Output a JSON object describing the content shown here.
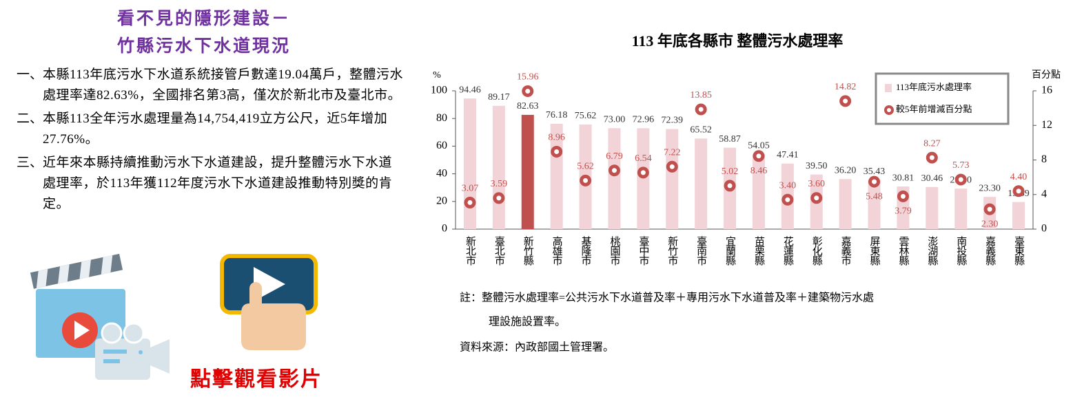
{
  "header": {
    "title_lines": [
      "看不見的隱形建設－",
      "竹縣污水下水道現況"
    ]
  },
  "items": [
    {
      "marker": "一、",
      "text": "本縣113年底污水下水道系統接管戶數達19.04萬戶，整體污水處理率達82.63%，全國排名第3高，僅次於新北市及臺北市。"
    },
    {
      "marker": "二、",
      "text": "本縣113全年污水處理量為14,754,419立方公尺，近5年增加27.76%。"
    },
    {
      "marker": "三、",
      "text": "近年來本縣持續推動污水下水道建設，提升整體污水下水道處理率，於113年獲112年度污水下水道建設推動特別獎的肯定。"
    }
  ],
  "video_link": "點擊觀看影片",
  "chart_data": {
    "type": "bar",
    "title": "113 年底各縣市 整體污水處理率",
    "y_label": "%",
    "y2_label": "百分點",
    "categories": [
      "新北市",
      "臺北市",
      "新竹縣",
      "高雄市",
      "基隆市",
      "桃園市",
      "臺中市",
      "新竹市",
      "臺南市",
      "宜蘭縣",
      "苗栗縣",
      "花蓮縣",
      "彰化縣",
      "嘉義市",
      "屏東縣",
      "雲林縣",
      "澎湖縣",
      "南投縣",
      "嘉義縣",
      "臺東縣"
    ],
    "series": [
      {
        "name": "113年底污水處理率",
        "type": "bar",
        "color": "#f2d3d7",
        "colors": [
          "#f2d3d7",
          "#f2d3d7",
          "#c0504d",
          "#f2d3d7",
          "#f2d3d7",
          "#f2d3d7",
          "#f2d3d7",
          "#f2d3d7",
          "#f2d3d7",
          "#f2d3d7",
          "#f2d3d7",
          "#f2d3d7",
          "#f2d3d7",
          "#f2d3d7",
          "#f2d3d7",
          "#f2d3d7",
          "#f2d3d7",
          "#f2d3d7",
          "#f2d3d7",
          "#f2d3d7"
        ],
        "values": [
          94.46,
          89.17,
          82.63,
          76.18,
          75.62,
          73.0,
          72.96,
          72.39,
          65.52,
          58.87,
          54.05,
          47.41,
          39.5,
          36.2,
          35.43,
          30.81,
          30.46,
          29.3,
          23.3,
          19.59
        ],
        "value_labels": [
          "94.46",
          "89.17",
          "82.63",
          "76.18",
          "75.62",
          "73.00",
          "72.96",
          "72.39",
          "65.52",
          "58.87",
          "54.05",
          "47.41",
          "39.50",
          "36.20",
          "35.43",
          "30.81",
          "30.46",
          "29.30",
          "23.30",
          "19.59"
        ]
      },
      {
        "name": "較5年前增減百分點",
        "type": "scatter",
        "axis": "y2",
        "color": "#c0504d",
        "values": [
          3.07,
          3.59,
          15.96,
          8.96,
          5.62,
          6.79,
          6.54,
          7.22,
          13.85,
          5.02,
          8.46,
          3.4,
          3.6,
          14.82,
          5.48,
          3.79,
          8.27,
          5.73,
          2.3,
          4.4
        ],
        "value_labels": [
          "3.07",
          "3.59",
          "15.96",
          "8.96",
          "5.62",
          "6.79",
          "6.54",
          "7.22",
          "13.85",
          "5.02",
          "8.46",
          "3.40",
          "3.60",
          "14.82",
          "5.48",
          "3.79",
          "8.27",
          "5.73",
          "2.30",
          "4.40"
        ]
      }
    ],
    "ylim": [
      0,
      100
    ],
    "yticks": [
      0,
      20,
      40,
      60,
      80,
      100
    ],
    "y2lim": [
      0,
      16
    ],
    "y2ticks": [
      0,
      4,
      8,
      12,
      16
    ],
    "legend": "top-right",
    "notes": [
      "註：整體污水處理率=公共污水下水道普及率＋專用污水下水道普及率＋建築物污水處",
      "理設施設置率。"
    ],
    "source": "資料來源：內政部國土管理署。"
  }
}
